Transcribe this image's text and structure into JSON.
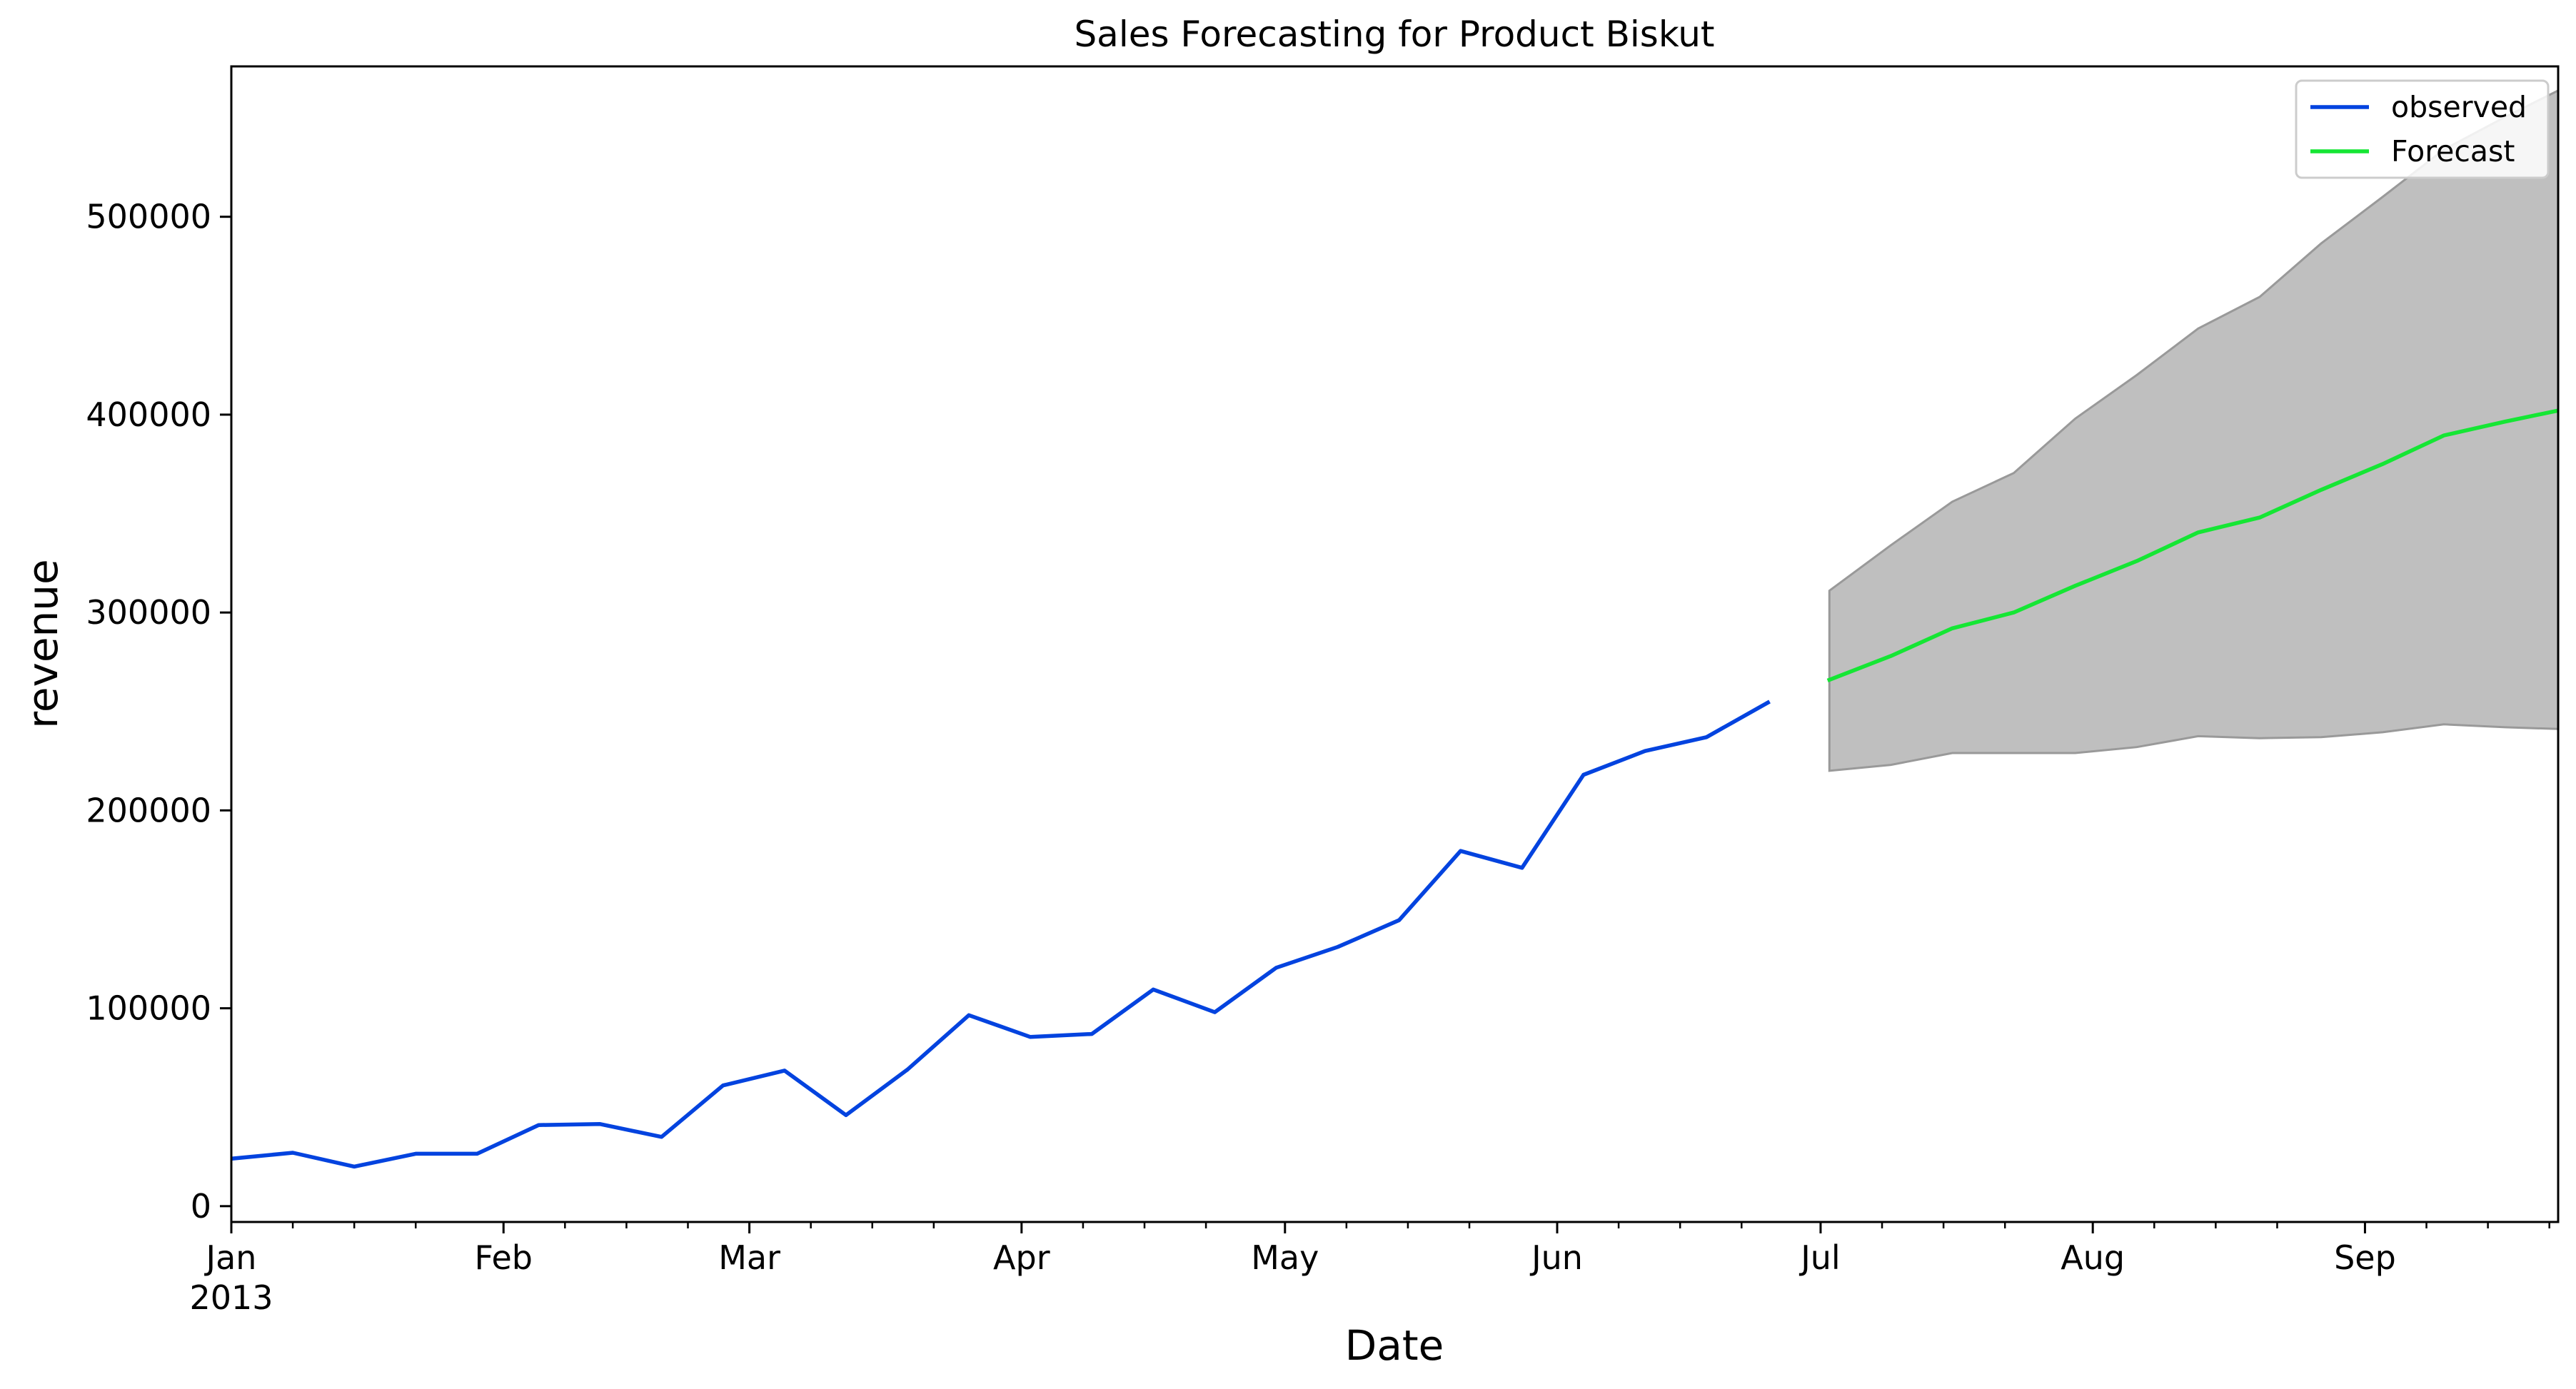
{
  "chart_data": {
    "type": "line",
    "title": "Sales Forecasting for Product Biskut",
    "xlabel": "Date",
    "ylabel": "revenue",
    "xlim": [
      "2013-01-01",
      "2013-09-23"
    ],
    "ylim": [
      -8000,
      576000
    ],
    "grid": false,
    "legend_position": "top-right",
    "y_ticks": [
      0,
      100000,
      200000,
      300000,
      400000,
      500000
    ],
    "y_tick_labels": [
      "0",
      "100000",
      "200000",
      "300000",
      "400000",
      "500000"
    ],
    "x_major_ticks": [
      {
        "date": "2013-01-01",
        "label": "Jan",
        "sublabel": "2013"
      },
      {
        "date": "2013-02-01",
        "label": "Feb",
        "sublabel": ""
      },
      {
        "date": "2013-03-01",
        "label": "Mar",
        "sublabel": ""
      },
      {
        "date": "2013-04-01",
        "label": "Apr",
        "sublabel": ""
      },
      {
        "date": "2013-05-01",
        "label": "May",
        "sublabel": ""
      },
      {
        "date": "2013-06-01",
        "label": "Jun",
        "sublabel": ""
      },
      {
        "date": "2013-07-01",
        "label": "Jul",
        "sublabel": ""
      },
      {
        "date": "2013-08-01",
        "label": "Aug",
        "sublabel": ""
      },
      {
        "date": "2013-09-01",
        "label": "Sep",
        "sublabel": ""
      }
    ],
    "x_minor_ticks": [
      "2013-01-08",
      "2013-01-15",
      "2013-01-22",
      "2013-02-08",
      "2013-02-15",
      "2013-02-22",
      "2013-03-08",
      "2013-03-15",
      "2013-03-22",
      "2013-04-08",
      "2013-04-15",
      "2013-04-22",
      "2013-05-08",
      "2013-05-15",
      "2013-05-22",
      "2013-06-08",
      "2013-06-15",
      "2013-06-22",
      "2013-07-08",
      "2013-07-15",
      "2013-07-22",
      "2013-08-08",
      "2013-08-15",
      "2013-08-22",
      "2013-09-08",
      "2013-09-15",
      "2013-09-22"
    ],
    "series": [
      {
        "name": "observed",
        "color": "#0343df",
        "x": [
          "2013-01-01",
          "2013-01-08",
          "2013-01-15",
          "2013-01-22",
          "2013-01-29",
          "2013-02-05",
          "2013-02-12",
          "2013-02-19",
          "2013-02-26",
          "2013-03-05",
          "2013-03-12",
          "2013-03-19",
          "2013-03-26",
          "2013-04-02",
          "2013-04-09",
          "2013-04-16",
          "2013-04-23",
          "2013-04-30",
          "2013-05-07",
          "2013-05-14",
          "2013-05-21",
          "2013-05-28",
          "2013-06-04",
          "2013-06-11",
          "2013-06-18",
          "2013-06-25"
        ],
        "values": [
          24000,
          27000,
          20000,
          26500,
          26500,
          41000,
          41500,
          35000,
          61000,
          68500,
          46000,
          69000,
          96500,
          85500,
          87000,
          109500,
          98000,
          120500,
          131000,
          144500,
          179500,
          171000,
          218000,
          230000,
          237000,
          254500
        ]
      },
      {
        "name": "Forecast",
        "color": "#15e634",
        "x": [
          "2013-07-02",
          "2013-07-09",
          "2013-07-16",
          "2013-07-23",
          "2013-07-30",
          "2013-08-06",
          "2013-08-13",
          "2013-08-20",
          "2013-08-27",
          "2013-09-03",
          "2013-09-10",
          "2013-09-17",
          "2013-09-24"
        ],
        "values": [
          266000,
          278000,
          292000,
          300000,
          313500,
          326000,
          340500,
          348000,
          362000,
          375000,
          389500,
          396500,
          403000
        ]
      }
    ],
    "confidence_interval": {
      "color": "#bfbfbf",
      "edge_color": "#999999",
      "x": [
        "2013-07-02",
        "2013-07-09",
        "2013-07-16",
        "2013-07-23",
        "2013-07-30",
        "2013-08-06",
        "2013-08-13",
        "2013-08-20",
        "2013-08-27",
        "2013-09-03",
        "2013-09-10",
        "2013-09-17",
        "2013-09-24"
      ],
      "lower": [
        220000,
        223000,
        229000,
        229000,
        229000,
        232000,
        237500,
        236500,
        237000,
        239500,
        243500,
        242000,
        241000
      ],
      "upper": [
        311000,
        334000,
        356000,
        370500,
        398000,
        420000,
        443500,
        459500,
        486500,
        510000,
        534000,
        550500,
        566000
      ]
    }
  }
}
